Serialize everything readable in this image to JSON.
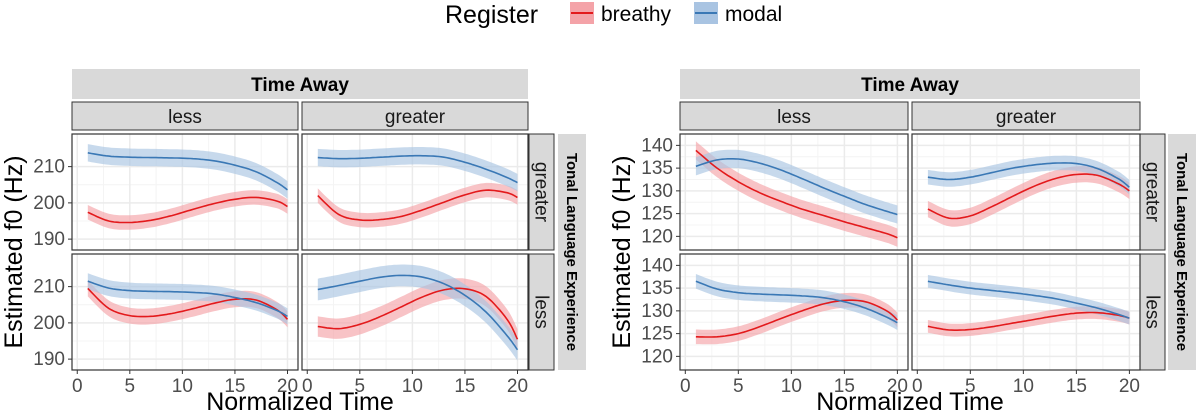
{
  "legend": {
    "title": "Register",
    "items": [
      {
        "label": "breathy",
        "line": "#e31a1c",
        "fill": "#f4a3a8"
      },
      {
        "label": "modal",
        "line": "#3a78b5",
        "fill": "#a9c4e2"
      }
    ]
  },
  "colors": {
    "strip_bg": "#d9d9d9",
    "panel_border": "#333333",
    "grid_major": "#ebebeb",
    "grid_minor": "#f4f4f4"
  },
  "chart_data": [
    {
      "type": "line",
      "facet_col_title": "Time Away",
      "facet_row_title": "Tonal Language Experience",
      "xlabel": "Normalized Time",
      "ylabel": "Estimated f0 (Hz)",
      "xlim": [
        -0.5,
        21
      ],
      "xticks": [
        0,
        5,
        10,
        15,
        20
      ],
      "ylim": [
        187,
        219
      ],
      "yticks": [
        190,
        200,
        210
      ],
      "cols": [
        "less",
        "greater"
      ],
      "rows": [
        "greater",
        "less"
      ],
      "panels": [
        {
          "col": "less",
          "row": "greater",
          "series": [
            {
              "register": "breathy",
              "x": [
                1,
                3,
                5,
                7,
                9,
                11,
                13,
                15,
                17,
                19,
                20
              ],
              "y": [
                197.4,
                195.0,
                194.6,
                195.2,
                196.5,
                198.2,
                199.8,
                201.0,
                201.5,
                200.5,
                199.0
              ],
              "band": 2.0
            },
            {
              "register": "modal",
              "x": [
                1,
                3,
                5,
                7,
                9,
                11,
                13,
                15,
                17,
                19,
                20
              ],
              "y": [
                213.8,
                212.9,
                212.6,
                212.5,
                212.4,
                212.2,
                211.6,
                210.4,
                208.6,
                205.6,
                203.6
              ],
              "band": 2.4
            }
          ]
        },
        {
          "col": "greater",
          "row": "greater",
          "series": [
            {
              "register": "breathy",
              "x": [
                1,
                3,
                5,
                7,
                9,
                11,
                13,
                15,
                17,
                19,
                20
              ],
              "y": [
                202.0,
                196.8,
                195.3,
                195.4,
                196.3,
                198.1,
                200.2,
                202.2,
                203.5,
                202.8,
                201.5
              ],
              "band": 2.0
            },
            {
              "register": "modal",
              "x": [
                1,
                3,
                5,
                7,
                9,
                11,
                13,
                15,
                17,
                19,
                20
              ],
              "y": [
                212.5,
                212.2,
                212.3,
                212.6,
                212.9,
                213.0,
                212.6,
                211.2,
                209.3,
                207.0,
                205.6
              ],
              "band": 2.4
            }
          ]
        },
        {
          "col": "less",
          "row": "less",
          "series": [
            {
              "register": "breathy",
              "x": [
                1,
                3,
                5,
                7,
                9,
                11,
                13,
                15,
                17,
                19,
                20
              ],
              "y": [
                209.5,
                204.0,
                202.0,
                201.8,
                202.6,
                203.9,
                205.4,
                206.5,
                206.3,
                203.6,
                201.0
              ],
              "band": 2.2
            },
            {
              "register": "modal",
              "x": [
                1,
                3,
                5,
                7,
                9,
                11,
                13,
                15,
                17,
                19,
                20
              ],
              "y": [
                211.5,
                209.6,
                208.9,
                208.7,
                208.6,
                208.4,
                208.0,
                207.0,
                205.6,
                203.4,
                201.8
              ],
              "band": 2.2
            }
          ]
        },
        {
          "col": "greater",
          "row": "less",
          "series": [
            {
              "register": "breathy",
              "x": [
                1,
                3,
                5,
                7,
                9,
                11,
                13,
                15,
                17,
                19,
                20
              ],
              "y": [
                199.0,
                198.4,
                199.6,
                201.8,
                204.5,
                207.2,
                209.1,
                209.4,
                207.3,
                201.0,
                195.5
              ],
              "band": 2.8
            },
            {
              "register": "modal",
              "x": [
                1,
                3,
                5,
                7,
                9,
                11,
                13,
                15,
                17,
                19,
                20
              ],
              "y": [
                209.2,
                210.3,
                211.5,
                212.6,
                213.1,
                212.6,
                210.8,
                207.6,
                203.0,
                196.5,
                192.6
              ],
              "band": 3.0
            }
          ]
        }
      ]
    },
    {
      "type": "line",
      "facet_col_title": "Time Away",
      "facet_row_title": "Tonal Language Experience",
      "xlabel": "Normalized Time",
      "ylabel": "Estimated f0 (Hz)",
      "xlim": [
        -0.5,
        21
      ],
      "xticks": [
        0,
        5,
        10,
        15,
        20
      ],
      "ylim": [
        117,
        142.5
      ],
      "yticks": [
        120,
        125,
        130,
        135,
        140
      ],
      "cols": [
        "less",
        "greater"
      ],
      "rows": [
        "greater",
        "less"
      ],
      "panels": [
        {
          "col": "less",
          "row": "greater",
          "series": [
            {
              "register": "breathy",
              "x": [
                1,
                3,
                5,
                7,
                9,
                11,
                13,
                15,
                17,
                19,
                20
              ],
              "y": [
                138.9,
                135.0,
                132.0,
                129.6,
                127.7,
                126.0,
                124.6,
                123.2,
                121.9,
                120.6,
                119.7
              ],
              "band": 2.0
            },
            {
              "register": "modal",
              "x": [
                1,
                3,
                5,
                7,
                9,
                11,
                13,
                15,
                17,
                19,
                20
              ],
              "y": [
                135.4,
                136.8,
                137.0,
                136.1,
                134.6,
                132.7,
                130.7,
                128.8,
                127.0,
                125.5,
                124.8
              ],
              "band": 2.0
            }
          ]
        },
        {
          "col": "greater",
          "row": "greater",
          "series": [
            {
              "register": "breathy",
              "x": [
                1,
                3,
                5,
                7,
                9,
                11,
                13,
                15,
                17,
                19,
                20
              ],
              "y": [
                126.0,
                124.0,
                124.5,
                126.5,
                128.8,
                131.0,
                132.7,
                133.6,
                133.4,
                131.5,
                130.0
              ],
              "band": 1.8
            },
            {
              "register": "modal",
              "x": [
                1,
                3,
                5,
                7,
                9,
                11,
                13,
                15,
                17,
                19,
                20
              ],
              "y": [
                133.0,
                132.5,
                133.0,
                134.0,
                135.0,
                135.7,
                136.1,
                136.0,
                134.9,
                132.6,
                130.8
              ],
              "band": 1.6
            }
          ]
        },
        {
          "col": "less",
          "row": "less",
          "series": [
            {
              "register": "breathy",
              "x": [
                1,
                3,
                5,
                7,
                9,
                11,
                13,
                15,
                17,
                19,
                20
              ],
              "y": [
                124.3,
                124.3,
                125.0,
                126.5,
                128.3,
                130.0,
                131.5,
                132.3,
                132.0,
                130.0,
                128.0
              ],
              "band": 1.6
            },
            {
              "register": "modal",
              "x": [
                1,
                3,
                5,
                7,
                9,
                11,
                13,
                15,
                17,
                19,
                20
              ],
              "y": [
                136.5,
                134.8,
                134.0,
                133.7,
                133.5,
                133.3,
                132.9,
                132.0,
                130.6,
                128.6,
                127.4
              ],
              "band": 1.6
            }
          ]
        },
        {
          "col": "greater",
          "row": "less",
          "series": [
            {
              "register": "breathy",
              "x": [
                1,
                3,
                5,
                7,
                9,
                11,
                13,
                15,
                17,
                19,
                20
              ],
              "y": [
                126.6,
                125.8,
                125.9,
                126.5,
                127.3,
                128.1,
                128.9,
                129.5,
                129.6,
                129.0,
                128.4
              ],
              "band": 1.4
            },
            {
              "register": "modal",
              "x": [
                1,
                3,
                5,
                7,
                9,
                11,
                13,
                15,
                17,
                19,
                20
              ],
              "y": [
                136.5,
                135.7,
                135.0,
                134.5,
                134.0,
                133.4,
                132.7,
                131.7,
                130.6,
                129.2,
                128.4
              ],
              "band": 1.4
            }
          ]
        }
      ]
    }
  ]
}
